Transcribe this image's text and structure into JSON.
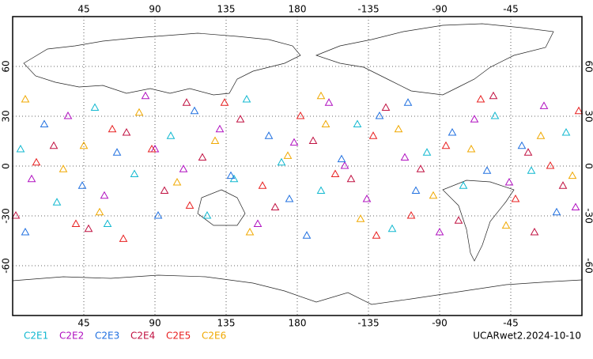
{
  "chart_data": {
    "type": "scatter",
    "footer": "UCARwet2.2024-10-10",
    "xlim": [
      0,
      360
    ],
    "ylim": [
      -90,
      90
    ],
    "xticks": [
      45,
      90,
      135,
      180,
      {
        "value": 225,
        "label": "-135"
      },
      {
        "value": 270,
        "label": "-90"
      },
      {
        "value": 315,
        "label": "-45"
      }
    ],
    "yticks": [
      -60,
      -30,
      0,
      30,
      60
    ],
    "grid": true,
    "series": [
      {
        "name": "C2E1",
        "color": "#10b8d0",
        "x": [
          5,
          28,
          52,
          77,
          100,
          123,
          148,
          170,
          195,
          218,
          240,
          262,
          285,
          305,
          328,
          350,
          140,
          60
        ],
        "y": [
          10,
          -22,
          35,
          -5,
          18,
          -30,
          40,
          2,
          -15,
          25,
          -38,
          8,
          -12,
          30,
          -3,
          20,
          -8,
          -35
        ]
      },
      {
        "name": "C2E2",
        "color": "#b010c0",
        "x": [
          12,
          35,
          58,
          84,
          108,
          131,
          155,
          178,
          200,
          224,
          248,
          270,
          292,
          314,
          336,
          356,
          90,
          210
        ],
        "y": [
          -8,
          30,
          -18,
          42,
          -2,
          22,
          -35,
          14,
          38,
          -20,
          5,
          -40,
          28,
          -10,
          36,
          -25,
          10,
          0
        ]
      },
      {
        "name": "C2E3",
        "color": "#2070e0",
        "x": [
          20,
          44,
          66,
          92,
          115,
          138,
          162,
          186,
          208,
          232,
          255,
          278,
          300,
          322,
          344,
          8,
          175,
          250
        ],
        "y": [
          25,
          -12,
          8,
          -30,
          33,
          -6,
          18,
          -42,
          4,
          30,
          -15,
          20,
          -3,
          12,
          -28,
          -40,
          -20,
          38
        ]
      },
      {
        "name": "C2E4",
        "color": "#c01040",
        "x": [
          2,
          26,
          48,
          72,
          96,
          120,
          144,
          166,
          190,
          214,
          236,
          258,
          282,
          304,
          326,
          348,
          110,
          330
        ],
        "y": [
          -30,
          12,
          -38,
          20,
          -15,
          5,
          28,
          -25,
          15,
          -8,
          35,
          -2,
          -33,
          42,
          8,
          -12,
          38,
          -40
        ]
      },
      {
        "name": "C2E5",
        "color": "#e82020",
        "x": [
          15,
          40,
          63,
          88,
          112,
          134,
          158,
          182,
          204,
          228,
          252,
          274,
          296,
          318,
          340,
          358,
          230,
          70
        ],
        "y": [
          2,
          -35,
          22,
          10,
          -24,
          38,
          -12,
          30,
          -5,
          18,
          -30,
          12,
          40,
          -20,
          0,
          33,
          -42,
          -44
        ]
      },
      {
        "name": "C2E6",
        "color": "#f0a800",
        "x": [
          8,
          32,
          55,
          80,
          104,
          128,
          150,
          174,
          198,
          220,
          244,
          266,
          290,
          312,
          334,
          354,
          195,
          45
        ],
        "y": [
          40,
          -2,
          -28,
          32,
          -10,
          15,
          -40,
          6,
          25,
          -32,
          22,
          -18,
          10,
          -36,
          18,
          -6,
          42,
          12
        ]
      }
    ]
  }
}
